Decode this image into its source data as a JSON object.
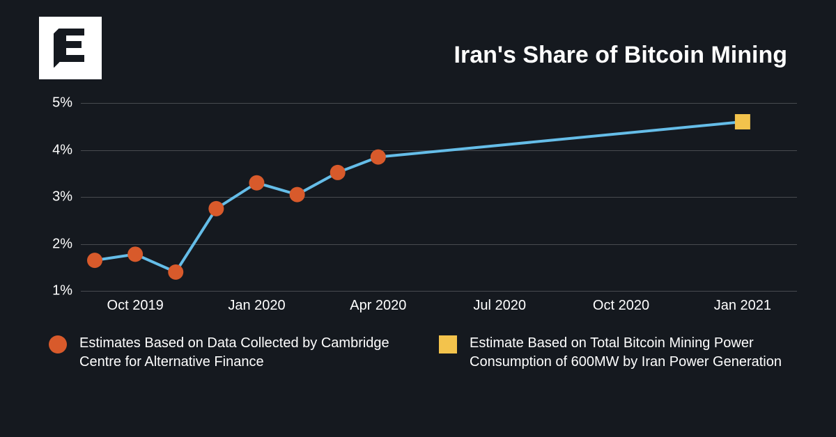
{
  "title": "Iran's Share of Bitcoin Mining",
  "chart": {
    "type": "line",
    "background_color": "#15191f",
    "grid_color": "rgba(255,255,255,0.22)",
    "text_color": "#ffffff",
    "title_fontsize": 34,
    "axis_fontsize": 20,
    "line_color": "#65bde8",
    "line_width": 4,
    "y": {
      "min": 1,
      "max": 5,
      "ticks": [
        1,
        2,
        3,
        4,
        5
      ],
      "tick_labels": [
        "1%",
        "2%",
        "3%",
        "4%",
        "5%"
      ]
    },
    "x": {
      "min": 0,
      "max": 17,
      "tick_positions": [
        1,
        4,
        7,
        10,
        13,
        16
      ],
      "tick_labels": [
        "Oct 2019",
        "Jan 2020",
        "Apr 2020",
        "Jul 2020",
        "Oct 2020",
        "Jan 2021"
      ]
    },
    "series_line": {
      "x": [
        0,
        1,
        2,
        3,
        4,
        5,
        6,
        7,
        16
      ],
      "y": [
        1.65,
        1.78,
        1.4,
        2.75,
        3.3,
        3.05,
        3.52,
        3.85,
        4.6
      ]
    },
    "series_circle": {
      "color": "#d85a2b",
      "radius": 11,
      "x": [
        0,
        1,
        2,
        3,
        4,
        5,
        6,
        7
      ],
      "y": [
        1.65,
        1.78,
        1.4,
        2.75,
        3.3,
        3.05,
        3.52,
        3.85
      ]
    },
    "series_square": {
      "color": "#f3c34c",
      "size": 22,
      "x": [
        16
      ],
      "y": [
        4.6
      ]
    }
  },
  "legend": {
    "items": [
      {
        "marker": "circle",
        "color": "#d85a2b",
        "label": "Estimates Based on Data Collected by Cambridge Centre for Alternative Finance"
      },
      {
        "marker": "square",
        "color": "#f3c34c",
        "label": "Estimate Based on Total Bitcoin Mining Power Consumption of 600MW by Iran Power Generation"
      }
    ]
  }
}
